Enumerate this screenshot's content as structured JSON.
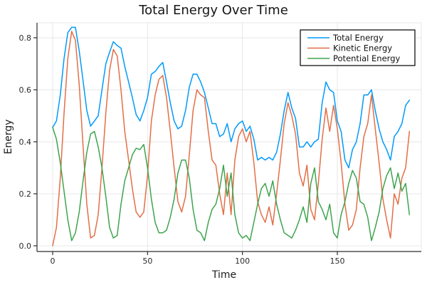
{
  "title": "Total Energy Over Time",
  "colors": {
    "background": "#FFFFFF",
    "grid": "#E7E7E7",
    "axis": "#2D2D2D",
    "text": "#1C1C1C",
    "legend_border": "#000000",
    "total_energy": "#009AFA",
    "kinetic_energy": "#E36F47",
    "potential_energy": "#3EA44E"
  },
  "legend": {
    "entries": [
      "Total Energy",
      "Kinetic Energy",
      "Potential Energy"
    ]
  },
  "chart_data": {
    "type": "line",
    "title": "Total Energy Over Time",
    "xlabel": "Time",
    "ylabel": "Energy",
    "xlim": [
      -8,
      194
    ],
    "ylim": [
      -0.02,
      0.86
    ],
    "xticks": [
      0,
      50,
      100,
      150
    ],
    "yticks": [
      0.0,
      0.2,
      0.4,
      0.6,
      0.8
    ],
    "grid": true,
    "legend_position": "top-right",
    "x": [
      0,
      2,
      4,
      6,
      8,
      10,
      12,
      14,
      16,
      18,
      20,
      22,
      24,
      26,
      28,
      30,
      32,
      34,
      36,
      38,
      40,
      42,
      44,
      46,
      48,
      50,
      52,
      54,
      56,
      58,
      60,
      62,
      64,
      66,
      68,
      70,
      72,
      74,
      76,
      78,
      80,
      82,
      84,
      86,
      88,
      90,
      92,
      94,
      96,
      98,
      100,
      102,
      104,
      106,
      108,
      110,
      112,
      114,
      116,
      118,
      120,
      122,
      124,
      126,
      128,
      130,
      132,
      134,
      136,
      138,
      140,
      142,
      144,
      146,
      148,
      150,
      152,
      154,
      156,
      158,
      160,
      162,
      164,
      166,
      168,
      170,
      172,
      174,
      176,
      178,
      180,
      182,
      184,
      186,
      188
    ],
    "series": [
      {
        "name": "Total Energy",
        "color": "#009AFA",
        "values": [
          0.455,
          0.48,
          0.58,
          0.72,
          0.82,
          0.84,
          0.84,
          0.75,
          0.635,
          0.52,
          0.46,
          0.48,
          0.5,
          0.6,
          0.7,
          0.745,
          0.785,
          0.77,
          0.76,
          0.69,
          0.63,
          0.57,
          0.505,
          0.48,
          0.52,
          0.57,
          0.66,
          0.67,
          0.69,
          0.705,
          0.63,
          0.55,
          0.48,
          0.45,
          0.46,
          0.52,
          0.61,
          0.66,
          0.66,
          0.63,
          0.59,
          0.53,
          0.47,
          0.47,
          0.42,
          0.43,
          0.47,
          0.4,
          0.45,
          0.47,
          0.48,
          0.44,
          0.46,
          0.41,
          0.33,
          0.34,
          0.33,
          0.34,
          0.33,
          0.36,
          0.43,
          0.52,
          0.59,
          0.53,
          0.49,
          0.38,
          0.38,
          0.4,
          0.38,
          0.4,
          0.41,
          0.55,
          0.63,
          0.6,
          0.59,
          0.48,
          0.44,
          0.33,
          0.3,
          0.37,
          0.4,
          0.47,
          0.58,
          0.58,
          0.6,
          0.52,
          0.45,
          0.4,
          0.37,
          0.33,
          0.42,
          0.44,
          0.47,
          0.54,
          0.56
        ]
      },
      {
        "name": "Kinetic Energy",
        "color": "#E36F47",
        "values": [
          0.0,
          0.07,
          0.26,
          0.51,
          0.72,
          0.825,
          0.79,
          0.62,
          0.385,
          0.16,
          0.03,
          0.04,
          0.12,
          0.3,
          0.51,
          0.675,
          0.755,
          0.73,
          0.6,
          0.44,
          0.33,
          0.22,
          0.13,
          0.11,
          0.13,
          0.27,
          0.48,
          0.58,
          0.64,
          0.655,
          0.57,
          0.44,
          0.3,
          0.17,
          0.13,
          0.19,
          0.35,
          0.52,
          0.6,
          0.58,
          0.57,
          0.44,
          0.33,
          0.31,
          0.2,
          0.12,
          0.28,
          0.12,
          0.33,
          0.42,
          0.45,
          0.4,
          0.44,
          0.32,
          0.17,
          0.12,
          0.09,
          0.15,
          0.08,
          0.2,
          0.33,
          0.47,
          0.55,
          0.5,
          0.43,
          0.28,
          0.23,
          0.31,
          0.14,
          0.1,
          0.24,
          0.41,
          0.53,
          0.44,
          0.54,
          0.45,
          0.32,
          0.16,
          0.06,
          0.08,
          0.14,
          0.3,
          0.42,
          0.47,
          0.58,
          0.45,
          0.32,
          0.18,
          0.1,
          0.03,
          0.2,
          0.16,
          0.26,
          0.3,
          0.44
        ]
      },
      {
        "name": "Potential Energy",
        "color": "#3EA44E",
        "values": [
          0.455,
          0.41,
          0.32,
          0.21,
          0.1,
          0.02,
          0.05,
          0.13,
          0.25,
          0.36,
          0.43,
          0.44,
          0.38,
          0.3,
          0.19,
          0.07,
          0.03,
          0.04,
          0.16,
          0.25,
          0.3,
          0.35,
          0.375,
          0.37,
          0.39,
          0.3,
          0.18,
          0.09,
          0.05,
          0.05,
          0.06,
          0.11,
          0.18,
          0.28,
          0.33,
          0.33,
          0.26,
          0.14,
          0.06,
          0.05,
          0.02,
          0.09,
          0.14,
          0.16,
          0.22,
          0.31,
          0.19,
          0.28,
          0.12,
          0.05,
          0.03,
          0.04,
          0.02,
          0.09,
          0.16,
          0.22,
          0.24,
          0.19,
          0.25,
          0.16,
          0.1,
          0.05,
          0.04,
          0.03,
          0.06,
          0.1,
          0.15,
          0.09,
          0.24,
          0.3,
          0.17,
          0.14,
          0.1,
          0.16,
          0.05,
          0.03,
          0.12,
          0.17,
          0.24,
          0.29,
          0.26,
          0.17,
          0.16,
          0.11,
          0.02,
          0.07,
          0.13,
          0.22,
          0.27,
          0.3,
          0.22,
          0.28,
          0.21,
          0.24,
          0.12
        ]
      }
    ],
    "xtick_labels": [
      "0",
      "50",
      "100",
      "150"
    ],
    "ytick_labels": [
      "0.0",
      "0.2",
      "0.4",
      "0.6",
      "0.8"
    ]
  }
}
